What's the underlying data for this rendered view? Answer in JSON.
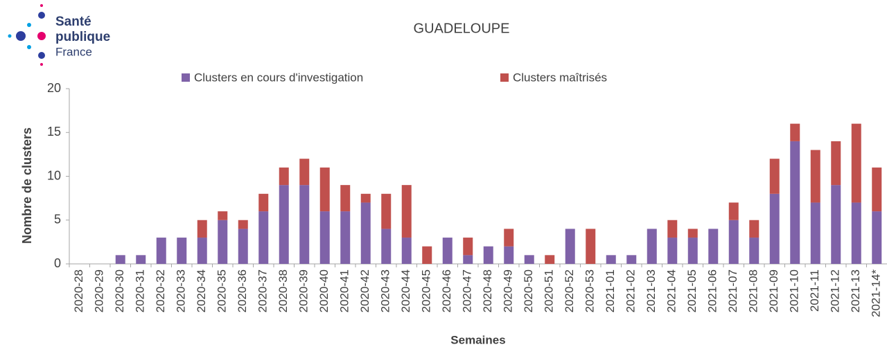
{
  "logo": {
    "line1": "Santé",
    "line2": "publique",
    "line3": "France"
  },
  "chart_data": {
    "type": "bar",
    "stacked": true,
    "title": "GUADELOUPE",
    "y_label": "Nombre de clusters",
    "x_label": "Semaines",
    "categories": [
      "2020-28",
      "2020-29",
      "2020-30",
      "2020-31",
      "2020-32",
      "2020-33",
      "2020-34",
      "2020-35",
      "2020-36",
      "2020-37",
      "2020-38",
      "2020-39",
      "2020-40",
      "2020-41",
      "2020-42",
      "2020-43",
      "2020-44",
      "2020-45",
      "2020-46",
      "2020-47",
      "2020-48",
      "2020-49",
      "2020-50",
      "2020-51",
      "2020-52",
      "2020-53",
      "2021-01",
      "2021-02",
      "2021-03",
      "2021-04",
      "2021-05",
      "2021-06",
      "2021-07",
      "2021-08",
      "2021-09",
      "2021-10",
      "2021-11",
      "2021-12",
      "2021-13",
      "2021-14*"
    ],
    "series": [
      {
        "name": "Clusters en cours d'investigation",
        "color": "#7f62a8",
        "values": [
          0,
          0,
          1,
          1,
          3,
          3,
          3,
          5,
          4,
          6,
          9,
          9,
          6,
          6,
          7,
          4,
          3,
          0,
          3,
          1,
          2,
          2,
          1,
          0,
          4,
          0,
          1,
          1,
          4,
          3,
          3,
          4,
          5,
          3,
          8,
          14,
          7,
          9,
          7,
          6
        ]
      },
      {
        "name": "Clusters maîtrisés",
        "color": "#c0504d",
        "values": [
          0,
          0,
          0,
          0,
          0,
          0,
          2,
          1,
          1,
          2,
          2,
          3,
          5,
          3,
          1,
          4,
          6,
          2,
          0,
          2,
          0,
          2,
          0,
          1,
          0,
          4,
          0,
          0,
          0,
          2,
          1,
          0,
          2,
          2,
          4,
          2,
          6,
          5,
          9,
          5
        ]
      }
    ],
    "ylim": [
      0,
      20
    ],
    "yticks": [
      0,
      5,
      10,
      15,
      20
    ],
    "grid": false
  }
}
